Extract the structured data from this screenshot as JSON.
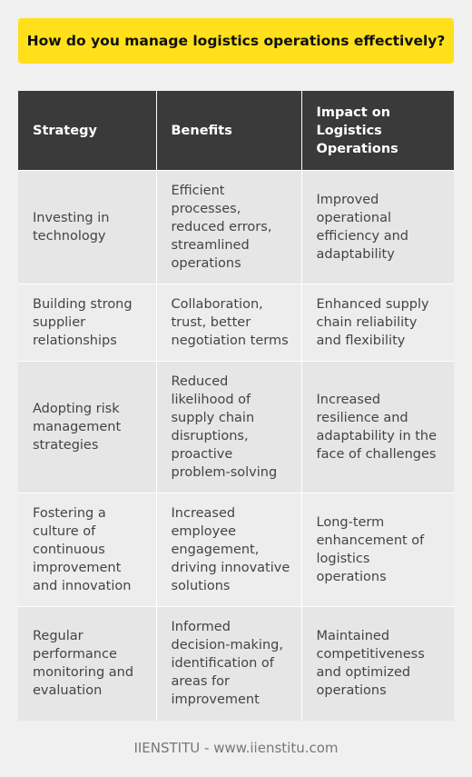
{
  "title": "How do you manage logistics operations effectively?",
  "table": {
    "headers": [
      "Strategy",
      "Benefits",
      "Impact on\nLogistics\nOperations"
    ],
    "rows": [
      [
        "Investing in\ntechnology",
        "Efficient\nprocesses,\nreduced errors,\nstreamlined\noperations",
        "Improved\noperational\nefficiency and\nadaptability"
      ],
      [
        "Building strong\nsupplier\nrelationships",
        "Collaboration,\ntrust, better\nnegotiation terms",
        "Enhanced supply\nchain reliability\nand flexibility"
      ],
      [
        "Adopting risk\nmanagement\nstrategies",
        "Reduced\nlikelihood of\nsupply chain\ndisruptions,\nproactive\nproblem-solving",
        "Increased\nresilience and\nadaptability in the\nface of challenges"
      ],
      [
        "Fostering a\nculture of\ncontinuous\nimprovement\nand innovation",
        "Increased\nemployee\nengagement,\ndriving innovative\nsolutions",
        "Long-term\nenhancement of\nlogistics operations"
      ],
      [
        "Regular\nperformance\nmonitoring and\nevaluation",
        "Informed\ndecision-making,\nidentification of\nareas for\nimprovement",
        "Maintained\ncompetitiveness\nand optimized\noperations"
      ]
    ]
  },
  "footer": "IIENSTITU - www.iienstitu.com",
  "colors": {
    "banner": "#ffe01b",
    "header_bg": "#3a3a3a",
    "row_bg": "#e6e6e6",
    "page_bg": "#f0f0f0"
  }
}
